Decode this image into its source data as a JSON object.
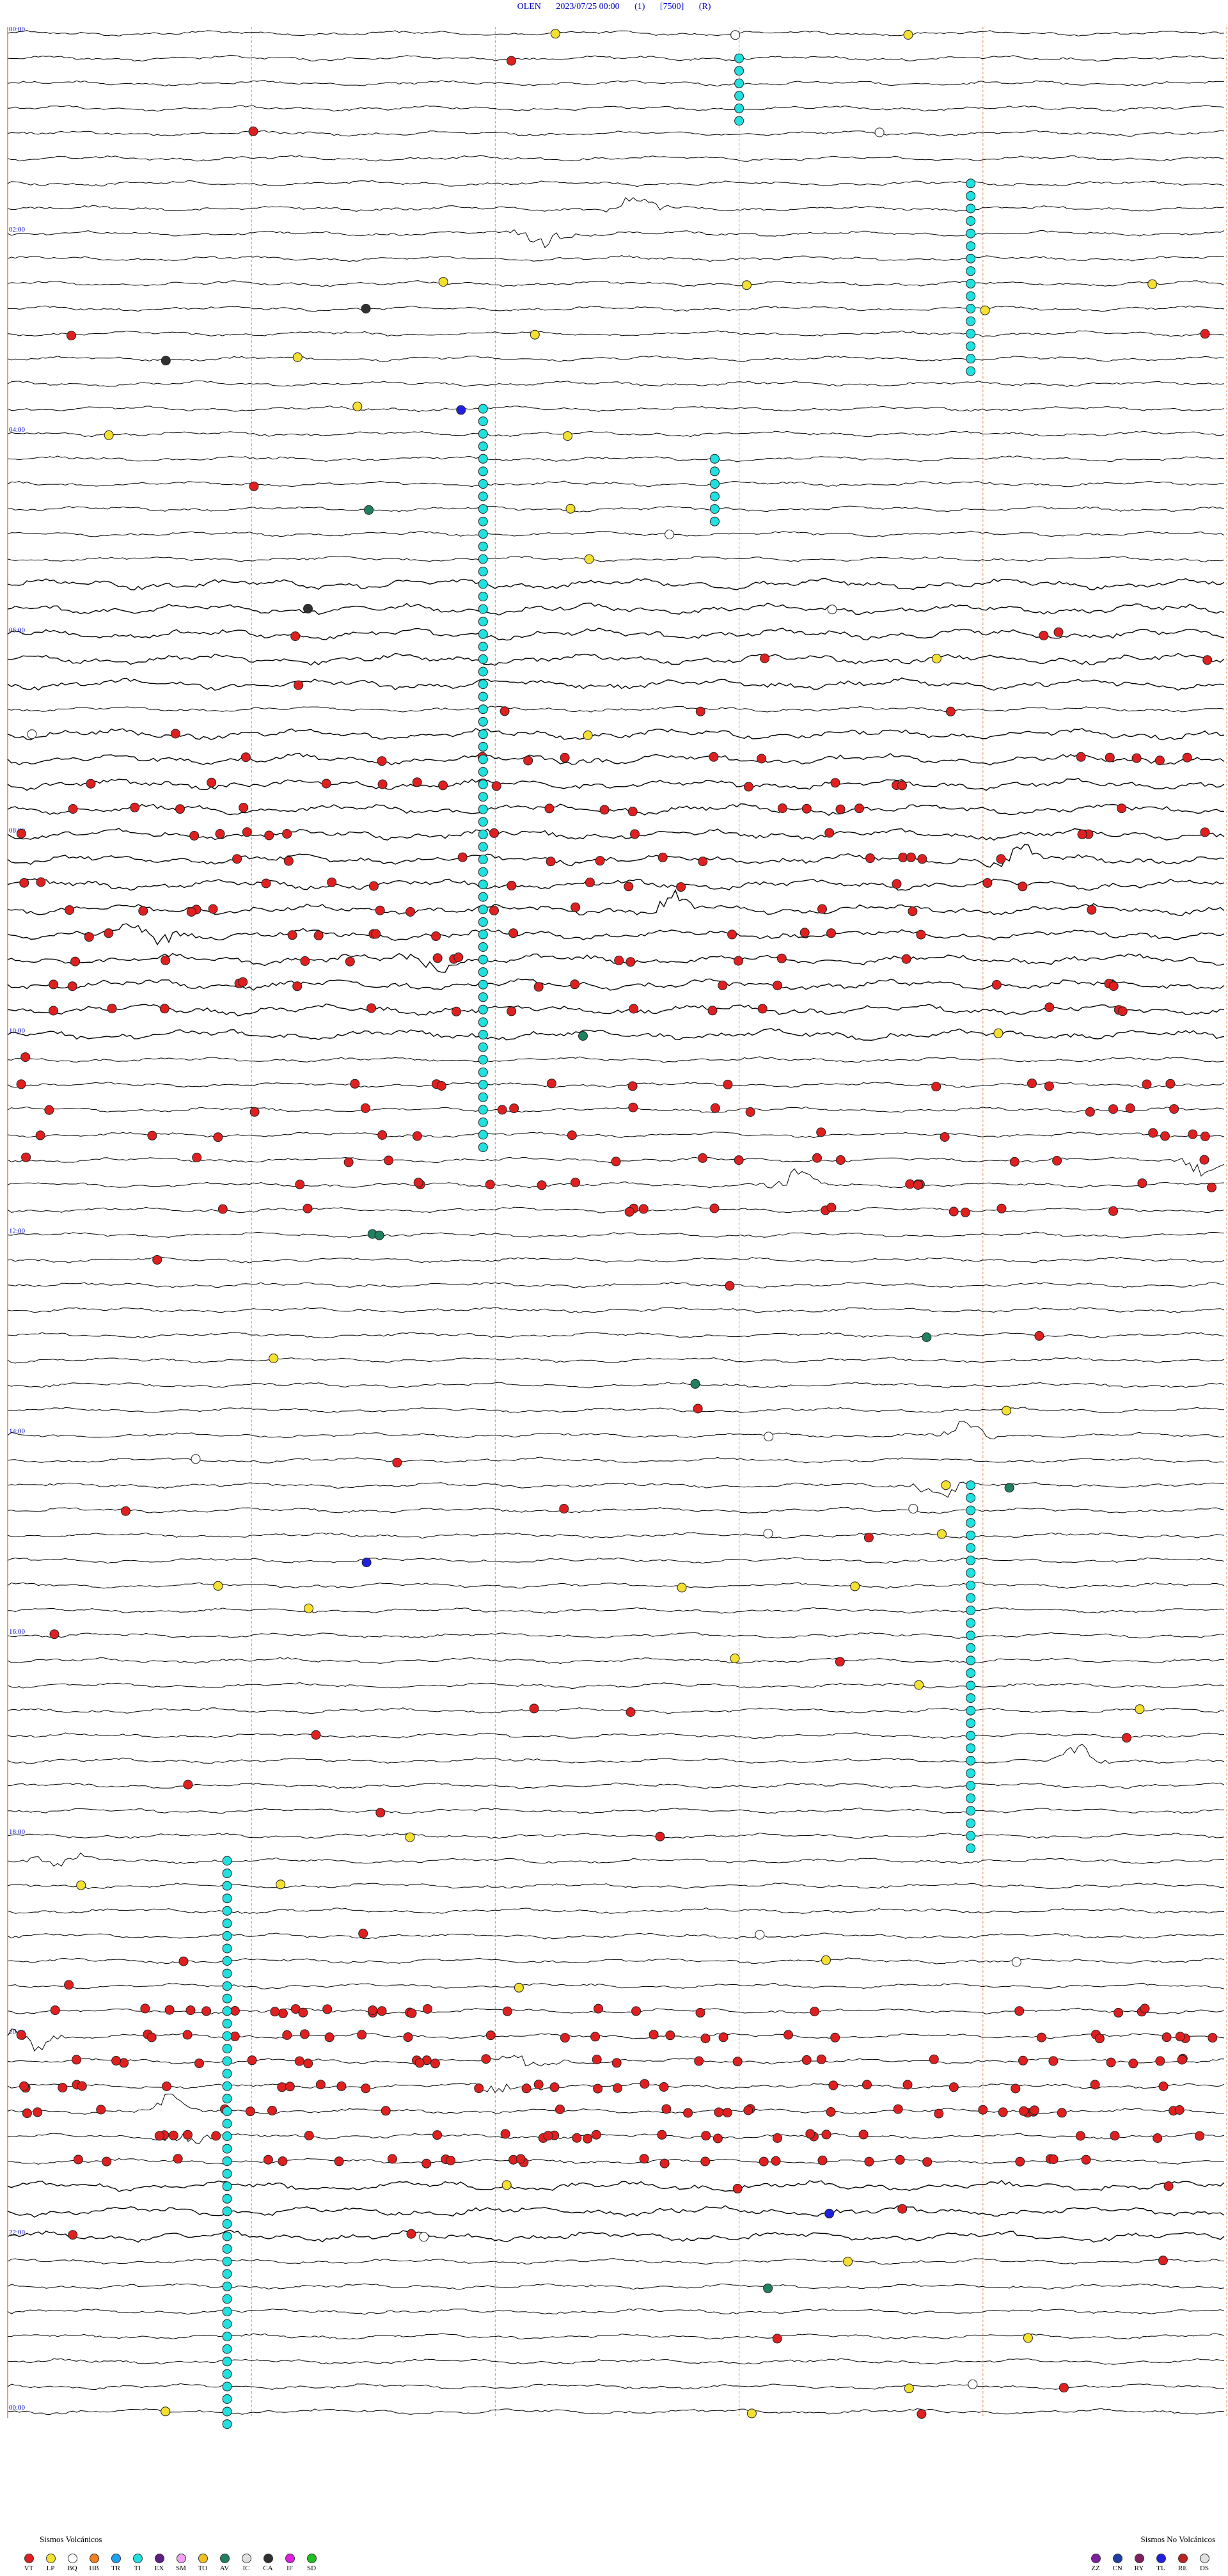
{
  "header": {
    "station": "OLEN",
    "datetime": "2023/07/25 00:00",
    "channel": "(1)",
    "scale": "[7500]",
    "mode": "(R)"
  },
  "chart_data": {
    "type": "helicorder",
    "rows": 96,
    "minutes_per_row": 15,
    "hour_labels": [
      "00:00",
      "02:00",
      "04:00",
      "06:00",
      "08:00",
      "10:00",
      "12:00",
      "14:00",
      "16:00",
      "18:00",
      "20:00",
      "22:00",
      "00:00"
    ],
    "trace_color": "#000000",
    "minute_gridline_color": "#e8a070",
    "event_colors": {
      "VT": "#e02020",
      "LP": "#f4e030",
      "BQ": "#ffffff",
      "HB": "#f08020",
      "TR": "#20a0f0",
      "TI": "#20e0e0",
      "EX": "#602080",
      "SM": "#f0a0f0",
      "TO": "#f0c020",
      "AV": "#208060",
      "IC": "#e0e0e0",
      "CA": "#303030",
      "IF": "#e020e0",
      "SD": "#20c020",
      "ZZ": "#8020a0",
      "CN": "#2040a0",
      "RY": "#802060",
      "TL": "#2020e0",
      "RE": "#c02020",
      "DS": "#e0e0e0"
    },
    "event_counts_by_row": {
      "vt_dense_rows": [
        29,
        30,
        31,
        32,
        33,
        34,
        35,
        36,
        37,
        38,
        39,
        42,
        43,
        44,
        45,
        46,
        47,
        79,
        80,
        81,
        82,
        83,
        84,
        85
      ],
      "large_events_rows": [
        7,
        8,
        33,
        35,
        36,
        37,
        45,
        46,
        56,
        58,
        69,
        73,
        80,
        81,
        82,
        83,
        84
      ]
    }
  },
  "legend_volcanic": {
    "title": "Sismos Volcánicos",
    "items": [
      {
        "label": "VT",
        "color": "#e02020"
      },
      {
        "label": "LP",
        "color": "#f4e030"
      },
      {
        "label": "BQ",
        "color": "#ffffff"
      },
      {
        "label": "HB",
        "color": "#f08020"
      },
      {
        "label": "TR",
        "color": "#20a0f0"
      },
      {
        "label": "TI",
        "color": "#20e0e0"
      },
      {
        "label": "EX",
        "color": "#602080"
      },
      {
        "label": "SM",
        "color": "#f0a0f0"
      },
      {
        "label": "TO",
        "color": "#f0c020"
      },
      {
        "label": "AV",
        "color": "#208060"
      },
      {
        "label": "IC",
        "color": "#e0e0e0"
      },
      {
        "label": "CA",
        "color": "#303030"
      },
      {
        "label": "IF",
        "color": "#e020e0"
      },
      {
        "label": "SD",
        "color": "#20c020"
      }
    ]
  },
  "legend_nonvolcanic": {
    "title": "Sismos No Volcánicos",
    "items": [
      {
        "label": "ZZ",
        "color": "#8020a0"
      },
      {
        "label": "CN",
        "color": "#2040a0"
      },
      {
        "label": "RY",
        "color": "#802060"
      },
      {
        "label": "TL",
        "color": "#2020e0"
      },
      {
        "label": "RE",
        "color": "#c02020"
      },
      {
        "label": "DS",
        "color": "#e0e0e0"
      }
    ]
  }
}
